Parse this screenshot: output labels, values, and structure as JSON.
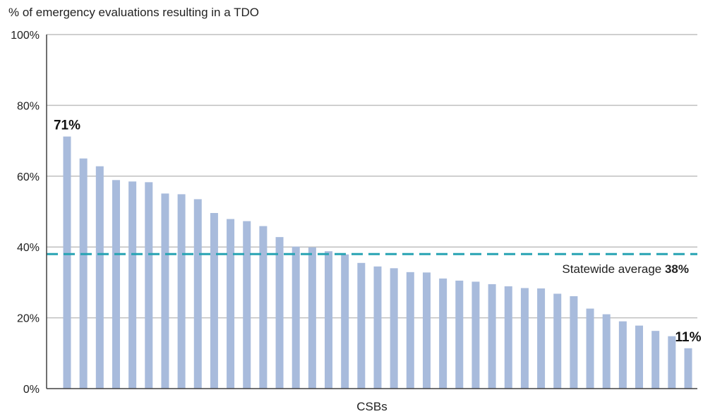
{
  "chart_data": {
    "type": "bar",
    "ylabel": "% of emergency evaluations resulting in a TDO",
    "xlabel": "CSBs",
    "ylim": [
      0,
      100
    ],
    "yticks": [
      "0%",
      "20%",
      "40%",
      "60%",
      "80%",
      "100%"
    ],
    "ytick_values": [
      0,
      20,
      40,
      60,
      80,
      100
    ],
    "grid": true,
    "values": [
      71.2,
      65.0,
      62.8,
      58.9,
      58.5,
      58.3,
      55.1,
      54.9,
      53.5,
      49.6,
      47.9,
      47.3,
      45.9,
      42.8,
      40.1,
      39.9,
      38.8,
      37.9,
      35.5,
      34.5,
      34.0,
      32.9,
      32.8,
      31.1,
      30.5,
      30.2,
      29.5,
      28.9,
      28.4,
      28.3,
      26.8,
      26.1,
      22.6,
      21.0,
      19.0,
      17.8,
      16.3,
      14.8,
      11.4
    ],
    "bar_color": "#a8bbdc",
    "reference_line": {
      "value": 38,
      "label_text": "Statewide average ",
      "label_value": "38%",
      "color": "#27a3b3"
    },
    "annotations": [
      {
        "text": "71%",
        "bar_index": 0
      },
      {
        "text": "11%",
        "bar_index": 38
      }
    ]
  },
  "colors": {
    "grid": "#bfbfbf",
    "axis": "#404040"
  }
}
